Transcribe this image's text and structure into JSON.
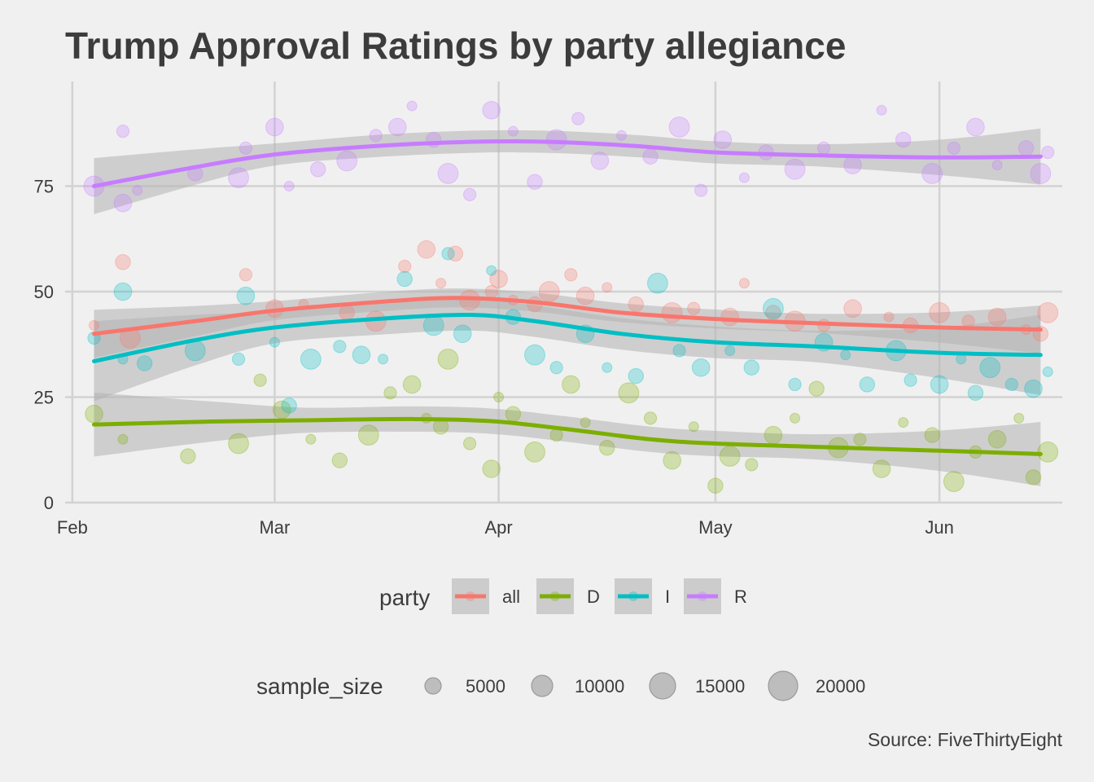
{
  "chart_data": {
    "type": "scatter",
    "title": "Trump Approval Ratings by party allegiance",
    "caption": "Source: FiveThirtyEight",
    "xlabel": "",
    "ylabel": "",
    "x_scale": "date",
    "xlim": [
      "2017-01-31",
      "2017-06-18"
    ],
    "ylim": [
      0,
      100
    ],
    "x_ticks": [
      {
        "date": "2017-02-01",
        "label": "Feb"
      },
      {
        "date": "2017-03-01",
        "label": "Mar"
      },
      {
        "date": "2017-04-01",
        "label": "Apr"
      },
      {
        "date": "2017-05-01",
        "label": "May"
      },
      {
        "date": "2017-06-01",
        "label": "Jun"
      }
    ],
    "y_ticks": [
      0,
      25,
      50,
      75
    ],
    "grid": true,
    "legend_placement": "bottom",
    "color_legend": {
      "title": "party",
      "entries": [
        "all",
        "D",
        "I",
        "R"
      ]
    },
    "size_legend": {
      "title": "sample_size",
      "entries": [
        5000,
        10000,
        15000,
        20000
      ]
    },
    "series": [
      {
        "name": "all",
        "color": "#F8766D",
        "smooth": [
          [
            "2017-02-04",
            40
          ],
          [
            "2017-02-18",
            43
          ],
          [
            "2017-03-01",
            45.5
          ],
          [
            "2017-03-15",
            47.5
          ],
          [
            "2017-03-26",
            48.5
          ],
          [
            "2017-04-06",
            47.5
          ],
          [
            "2017-04-18",
            45
          ],
          [
            "2017-05-01",
            43.5
          ],
          [
            "2017-05-15",
            42.5
          ],
          [
            "2017-06-01",
            41.5
          ],
          [
            "2017-06-15",
            41
          ]
        ],
        "band": 3,
        "points": [
          [
            "2017-02-04",
            42
          ],
          [
            "2017-02-08",
            57
          ],
          [
            "2017-02-09",
            39
          ],
          [
            "2017-02-25",
            54
          ],
          [
            "2017-03-01",
            46
          ],
          [
            "2017-03-05",
            47
          ],
          [
            "2017-03-11",
            45
          ],
          [
            "2017-03-15",
            43
          ],
          [
            "2017-03-19",
            56
          ],
          [
            "2017-03-22",
            60
          ],
          [
            "2017-03-24",
            52
          ],
          [
            "2017-03-26",
            59
          ],
          [
            "2017-03-28",
            48
          ],
          [
            "2017-03-31",
            50
          ],
          [
            "2017-04-01",
            53
          ],
          [
            "2017-04-03",
            48
          ],
          [
            "2017-04-06",
            47
          ],
          [
            "2017-04-08",
            50
          ],
          [
            "2017-04-11",
            54
          ],
          [
            "2017-04-13",
            49
          ],
          [
            "2017-04-16",
            51
          ],
          [
            "2017-04-20",
            47
          ],
          [
            "2017-04-25",
            45
          ],
          [
            "2017-04-28",
            46
          ],
          [
            "2017-05-03",
            44
          ],
          [
            "2017-05-05",
            52
          ],
          [
            "2017-05-09",
            45
          ],
          [
            "2017-05-12",
            43
          ],
          [
            "2017-05-16",
            42
          ],
          [
            "2017-05-20",
            46
          ],
          [
            "2017-05-25",
            44
          ],
          [
            "2017-05-28",
            42
          ],
          [
            "2017-06-01",
            45
          ],
          [
            "2017-06-05",
            43
          ],
          [
            "2017-06-09",
            44
          ],
          [
            "2017-06-13",
            41
          ],
          [
            "2017-06-15",
            40
          ],
          [
            "2017-06-16",
            45
          ]
        ]
      },
      {
        "name": "D",
        "color": "#7CAE00",
        "smooth": [
          [
            "2017-02-04",
            18.5
          ],
          [
            "2017-02-20",
            19.2
          ],
          [
            "2017-03-05",
            19.5
          ],
          [
            "2017-03-20",
            19.8
          ],
          [
            "2017-03-31",
            19.3
          ],
          [
            "2017-04-10",
            17.5
          ],
          [
            "2017-04-22",
            15
          ],
          [
            "2017-05-01",
            14
          ],
          [
            "2017-05-15",
            13.2
          ],
          [
            "2017-06-01",
            12.3
          ],
          [
            "2017-06-15",
            11.5
          ]
        ],
        "band": 4,
        "points": [
          [
            "2017-02-04",
            21
          ],
          [
            "2017-02-08",
            15
          ],
          [
            "2017-02-17",
            11
          ],
          [
            "2017-02-24",
            14
          ],
          [
            "2017-02-27",
            29
          ],
          [
            "2017-03-02",
            22
          ],
          [
            "2017-03-06",
            15
          ],
          [
            "2017-03-10",
            10
          ],
          [
            "2017-03-14",
            16
          ],
          [
            "2017-03-17",
            26
          ],
          [
            "2017-03-20",
            28
          ],
          [
            "2017-03-22",
            20
          ],
          [
            "2017-03-24",
            18
          ],
          [
            "2017-03-25",
            34
          ],
          [
            "2017-03-28",
            14
          ],
          [
            "2017-03-31",
            8
          ],
          [
            "2017-04-01",
            25
          ],
          [
            "2017-04-03",
            21
          ],
          [
            "2017-04-06",
            12
          ],
          [
            "2017-04-09",
            16
          ],
          [
            "2017-04-11",
            28
          ],
          [
            "2017-04-13",
            19
          ],
          [
            "2017-04-16",
            13
          ],
          [
            "2017-04-19",
            26
          ],
          [
            "2017-04-22",
            20
          ],
          [
            "2017-04-25",
            10
          ],
          [
            "2017-04-28",
            18
          ],
          [
            "2017-05-01",
            4
          ],
          [
            "2017-05-03",
            11
          ],
          [
            "2017-05-06",
            9
          ],
          [
            "2017-05-09",
            16
          ],
          [
            "2017-05-12",
            20
          ],
          [
            "2017-05-15",
            27
          ],
          [
            "2017-05-18",
            13
          ],
          [
            "2017-05-21",
            15
          ],
          [
            "2017-05-24",
            8
          ],
          [
            "2017-05-27",
            19
          ],
          [
            "2017-05-31",
            16
          ],
          [
            "2017-06-03",
            5
          ],
          [
            "2017-06-06",
            12
          ],
          [
            "2017-06-09",
            15
          ],
          [
            "2017-06-12",
            20
          ],
          [
            "2017-06-14",
            6
          ],
          [
            "2017-06-16",
            12
          ]
        ]
      },
      {
        "name": "I",
        "color": "#00BFC4",
        "smooth": [
          [
            "2017-02-04",
            33.5
          ],
          [
            "2017-02-18",
            38.5
          ],
          [
            "2017-03-01",
            41.5
          ],
          [
            "2017-03-15",
            43.5
          ],
          [
            "2017-03-28",
            44.5
          ],
          [
            "2017-04-06",
            43
          ],
          [
            "2017-04-18",
            40
          ],
          [
            "2017-05-01",
            38
          ],
          [
            "2017-05-15",
            37
          ],
          [
            "2017-06-01",
            35.5
          ],
          [
            "2017-06-15",
            35
          ]
        ],
        "band": 5,
        "points": [
          [
            "2017-02-04",
            39
          ],
          [
            "2017-02-08",
            50
          ],
          [
            "2017-02-08",
            34
          ],
          [
            "2017-02-11",
            33
          ],
          [
            "2017-02-18",
            36
          ],
          [
            "2017-02-24",
            34
          ],
          [
            "2017-02-25",
            49
          ],
          [
            "2017-03-01",
            38
          ],
          [
            "2017-03-03",
            23
          ],
          [
            "2017-03-06",
            34
          ],
          [
            "2017-03-10",
            37
          ],
          [
            "2017-03-13",
            35
          ],
          [
            "2017-03-16",
            34
          ],
          [
            "2017-03-19",
            53
          ],
          [
            "2017-03-23",
            42
          ],
          [
            "2017-03-25",
            59
          ],
          [
            "2017-03-27",
            40
          ],
          [
            "2017-03-31",
            55
          ],
          [
            "2017-04-03",
            44
          ],
          [
            "2017-04-06",
            35
          ],
          [
            "2017-04-09",
            32
          ],
          [
            "2017-04-13",
            40
          ],
          [
            "2017-04-16",
            32
          ],
          [
            "2017-04-20",
            30
          ],
          [
            "2017-04-23",
            52
          ],
          [
            "2017-04-26",
            36
          ],
          [
            "2017-04-29",
            32
          ],
          [
            "2017-05-03",
            36
          ],
          [
            "2017-05-06",
            32
          ],
          [
            "2017-05-09",
            46
          ],
          [
            "2017-05-12",
            28
          ],
          [
            "2017-05-16",
            38
          ],
          [
            "2017-05-19",
            35
          ],
          [
            "2017-05-22",
            28
          ],
          [
            "2017-05-26",
            36
          ],
          [
            "2017-05-28",
            29
          ],
          [
            "2017-06-01",
            28
          ],
          [
            "2017-06-04",
            34
          ],
          [
            "2017-06-06",
            26
          ],
          [
            "2017-06-08",
            32
          ],
          [
            "2017-06-11",
            28
          ],
          [
            "2017-06-14",
            27
          ],
          [
            "2017-06-16",
            31
          ]
        ]
      },
      {
        "name": "R",
        "color": "#C77CFF",
        "smooth": [
          [
            "2017-02-04",
            75
          ],
          [
            "2017-02-18",
            79.5
          ],
          [
            "2017-03-01",
            82.5
          ],
          [
            "2017-03-15",
            84.5
          ],
          [
            "2017-03-28",
            85.5
          ],
          [
            "2017-04-08",
            85.5
          ],
          [
            "2017-04-20",
            84.5
          ],
          [
            "2017-05-01",
            83
          ],
          [
            "2017-05-15",
            82.3
          ],
          [
            "2017-06-01",
            81.8
          ],
          [
            "2017-06-15",
            82
          ]
        ],
        "band": 3.5,
        "points": [
          [
            "2017-02-04",
            75
          ],
          [
            "2017-02-08",
            88
          ],
          [
            "2017-02-08",
            71
          ],
          [
            "2017-02-10",
            74
          ],
          [
            "2017-02-18",
            78
          ],
          [
            "2017-02-24",
            77
          ],
          [
            "2017-02-25",
            84
          ],
          [
            "2017-03-01",
            89
          ],
          [
            "2017-03-03",
            75
          ],
          [
            "2017-03-07",
            79
          ],
          [
            "2017-03-11",
            81
          ],
          [
            "2017-03-15",
            87
          ],
          [
            "2017-03-18",
            89
          ],
          [
            "2017-03-20",
            94
          ],
          [
            "2017-03-23",
            86
          ],
          [
            "2017-03-25",
            78
          ],
          [
            "2017-03-28",
            73
          ],
          [
            "2017-03-31",
            93
          ],
          [
            "2017-04-03",
            88
          ],
          [
            "2017-04-06",
            76
          ],
          [
            "2017-04-09",
            86
          ],
          [
            "2017-04-12",
            91
          ],
          [
            "2017-04-15",
            81
          ],
          [
            "2017-04-18",
            87
          ],
          [
            "2017-04-22",
            82
          ],
          [
            "2017-04-26",
            89
          ],
          [
            "2017-04-29",
            74
          ],
          [
            "2017-05-02",
            86
          ],
          [
            "2017-05-05",
            77
          ],
          [
            "2017-05-08",
            83
          ],
          [
            "2017-05-12",
            79
          ],
          [
            "2017-05-16",
            84
          ],
          [
            "2017-05-20",
            80
          ],
          [
            "2017-05-24",
            93
          ],
          [
            "2017-05-27",
            86
          ],
          [
            "2017-05-31",
            78
          ],
          [
            "2017-06-03",
            84
          ],
          [
            "2017-06-06",
            89
          ],
          [
            "2017-06-09",
            80
          ],
          [
            "2017-06-13",
            84
          ],
          [
            "2017-06-15",
            78
          ],
          [
            "2017-06-16",
            83
          ]
        ]
      }
    ]
  }
}
